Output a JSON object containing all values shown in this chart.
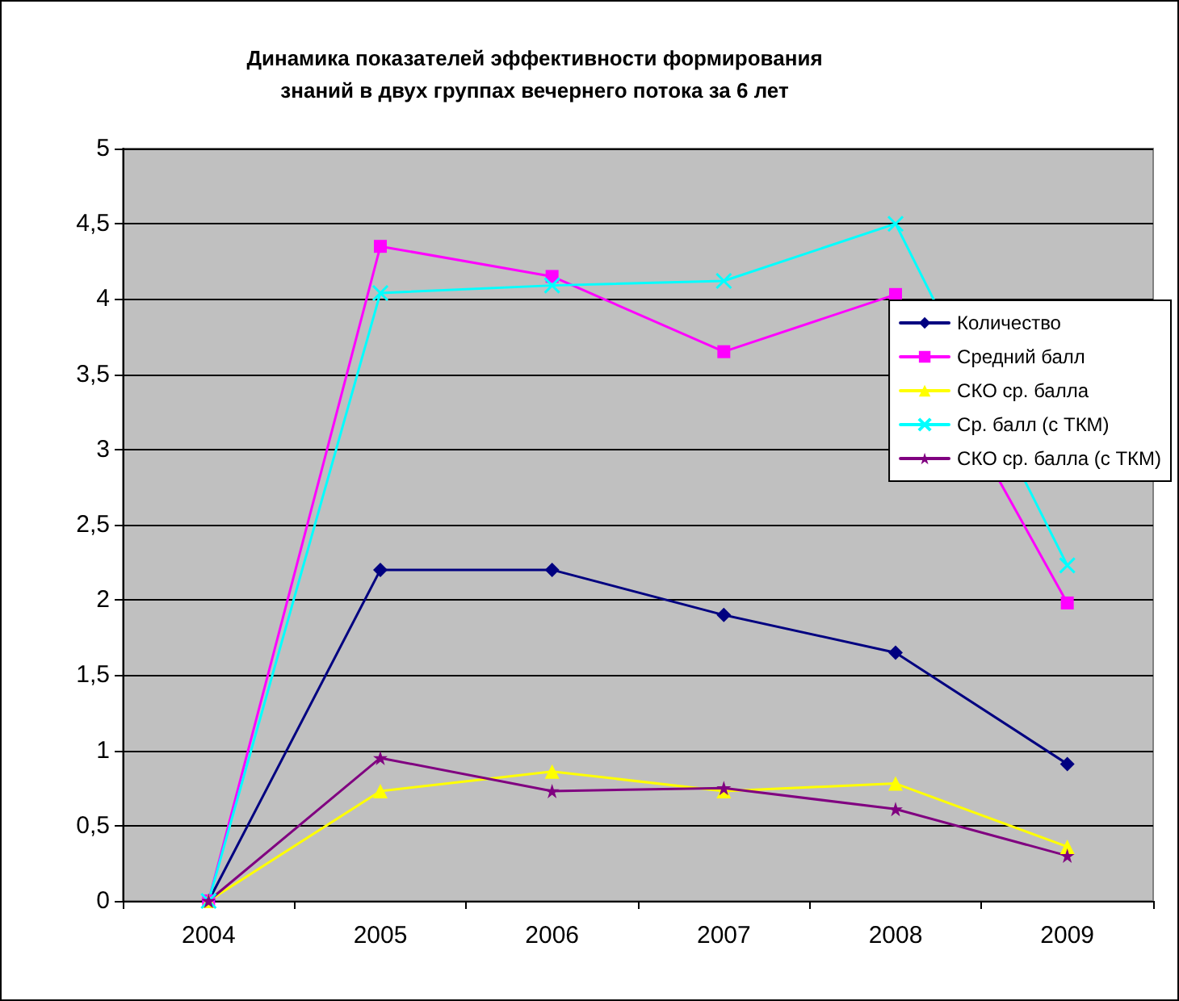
{
  "chart_data": {
    "type": "line",
    "title": "Динамика показателей эффективности формирования\nзнаний в двух группах вечернего потока за 6 лет",
    "categories": [
      "2004",
      "2005",
      "2006",
      "2007",
      "2008",
      "2009"
    ],
    "series": [
      {
        "name": "Количество",
        "color": "#000080",
        "marker": "diamond",
        "values": [
          0,
          2.2,
          2.2,
          1.9,
          1.65,
          0.91
        ]
      },
      {
        "name": "Средний балл",
        "color": "#ff00ff",
        "marker": "square",
        "values": [
          0,
          4.35,
          4.15,
          3.65,
          4.03,
          1.98
        ]
      },
      {
        "name": "СКО ср. балла",
        "color": "#ffff00",
        "marker": "triangle",
        "values": [
          0,
          0.73,
          0.86,
          0.73,
          0.78,
          0.36
        ]
      },
      {
        "name": "Ср. балл (с ТКМ)",
        "color": "#00ffff",
        "marker": "cross",
        "values": [
          0,
          4.04,
          4.09,
          4.12,
          4.5,
          2.23
        ]
      },
      {
        "name": "СКО ср. балла (с ТКМ)",
        "color": "#800080",
        "marker": "star",
        "values": [
          0,
          0.95,
          0.73,
          0.75,
          0.61,
          0.3
        ]
      }
    ],
    "ylim": [
      0,
      5
    ],
    "yticks": [
      0,
      {
        "value": 0.5,
        "label": "0,5"
      },
      1,
      {
        "value": 1.5,
        "label": "1,5"
      },
      2,
      {
        "value": 2.5,
        "label": "2,5"
      },
      3,
      {
        "value": 3.5,
        "label": "3,5"
      },
      4,
      {
        "value": 4.5,
        "label": "4,5"
      },
      5
    ],
    "grid": "y",
    "legend": "right",
    "line_style": "solid"
  }
}
